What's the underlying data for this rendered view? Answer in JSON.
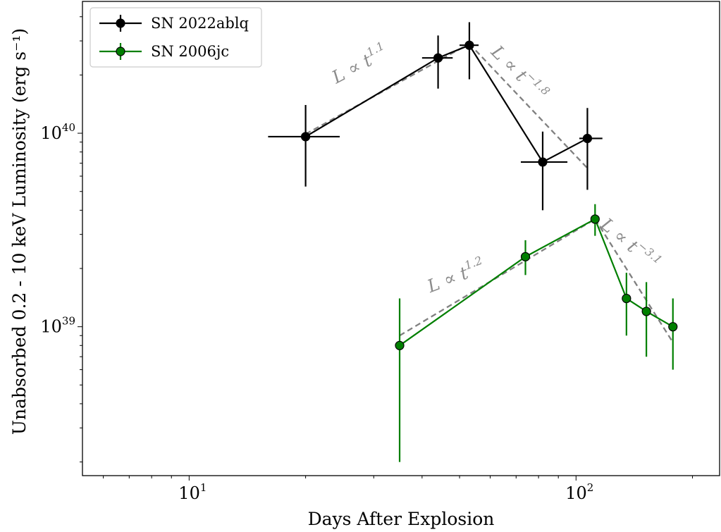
{
  "chart_data": {
    "type": "scatter",
    "xlabel": "Days After Explosion",
    "ylabel": "Unabsorbed 0.2 - 10 keV Luminosity (erg s⁻¹)",
    "xscale": "log",
    "yscale": "log",
    "xlim": [
      5.3,
      235
    ],
    "ylim": [
      1.7e+38,
      4.8e+40
    ],
    "x_ticks": [
      {
        "value": 10,
        "base": "10",
        "exp": "1"
      },
      {
        "value": 100,
        "base": "10",
        "exp": "2"
      }
    ],
    "y_ticks": [
      {
        "value": 1e+39,
        "base": "10",
        "exp": "39"
      },
      {
        "value": 1e+40,
        "base": "10",
        "exp": "40"
      }
    ],
    "legend_position": "top-left",
    "series": [
      {
        "name": "SN 2022ablq",
        "color": "#000000",
        "points": [
          {
            "x": 20,
            "y": 9.6e+39,
            "xlo": 16,
            "xhi": 24.5,
            "ylo": 5.3e+39,
            "yhi": 1.4e+40
          },
          {
            "x": 44,
            "y": 2.45e+40,
            "xlo": 40,
            "xhi": 48,
            "ylo": 1.7e+40,
            "yhi": 3.2e+40
          },
          {
            "x": 53,
            "y": 2.85e+40,
            "xlo": 50,
            "xhi": 56,
            "ylo": 1.9e+40,
            "yhi": 3.75e+40
          },
          {
            "x": 82,
            "y": 7.1e+39,
            "xlo": 72,
            "xhi": 95,
            "ylo": 4e+39,
            "yhi": 1.02e+40
          },
          {
            "x": 107,
            "y": 9.4e+39,
            "xlo": 102,
            "xhi": 117,
            "ylo": 5.1e+39,
            "yhi": 1.35e+40
          }
        ]
      },
      {
        "name": "SN 2006jc",
        "color": "#007f00",
        "points": [
          {
            "x": 35,
            "y": 8e+38,
            "ylo": 2e+38,
            "yhi": 1.4e+39
          },
          {
            "x": 74,
            "y": 2.3e+39,
            "ylo": 1.85e+39,
            "yhi": 2.8e+39
          },
          {
            "x": 112,
            "y": 3.6e+39,
            "ylo": 2.95e+39,
            "yhi": 4.3e+39
          },
          {
            "x": 135,
            "y": 1.4e+39,
            "ylo": 9e+38,
            "yhi": 1.9e+39
          },
          {
            "x": 152,
            "y": 1.2e+39,
            "ylo": 7e+38,
            "yhi": 1.7e+39
          },
          {
            "x": 178,
            "y": 1e+39,
            "ylo": 6e+38,
            "yhi": 1.4e+39
          }
        ]
      }
    ],
    "fits": [
      {
        "points": [
          [
            20,
            9.9e+39
          ],
          [
            53,
            2.9e+40
          ]
        ],
        "color": "#808080",
        "dash": "dashed"
      },
      {
        "points": [
          [
            53,
            2.9e+40
          ],
          [
            107,
            6.6e+39
          ]
        ],
        "color": "#808080",
        "dash": "dashed"
      },
      {
        "points": [
          [
            35,
            9e+38
          ],
          [
            112,
            3.6e+39
          ]
        ],
        "color": "#808080",
        "dash": "dashed"
      },
      {
        "points": [
          [
            112,
            3.6e+39
          ],
          [
            178,
            8.3e+38
          ]
        ],
        "color": "#808080",
        "dash": "dashed"
      }
    ],
    "annotations": [
      {
        "base": "L ∝ t",
        "exp": "1.1",
        "x": 24,
        "y": 1.8e+40,
        "rotate": -28
      },
      {
        "base": "L ∝ t",
        "exp": "−1.8",
        "x": 60,
        "y": 2.6e+40,
        "rotate": 45
      },
      {
        "base": "L ∝ t",
        "exp": "1.2",
        "x": 42,
        "y": 1.5e+39,
        "rotate": -21
      },
      {
        "base": "L ∝ t",
        "exp": "−3.1",
        "x": 115,
        "y": 3.3e+39,
        "rotate": 40
      }
    ]
  }
}
